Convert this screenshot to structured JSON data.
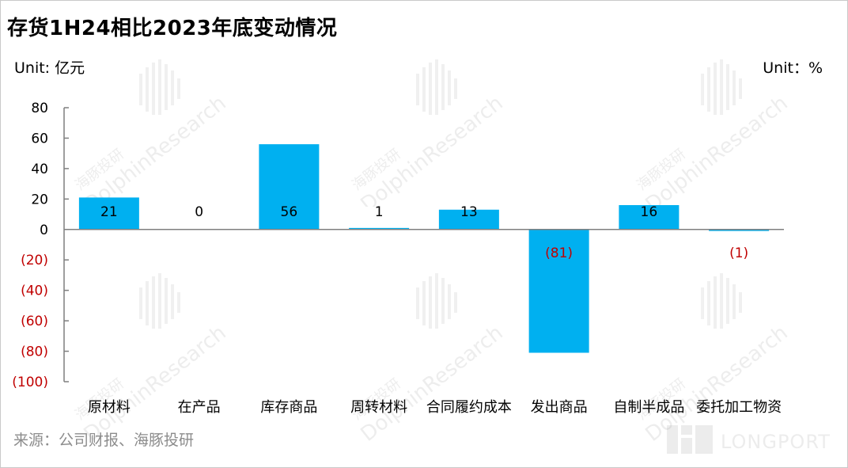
{
  "title": "存货1H24相比2023年底变动情况",
  "unit_left": "Unit: 亿元",
  "unit_right": "Unit：%",
  "source": "来源：公司财报、海豚投研",
  "watermark": {
    "cn": "海豚投研",
    "en": "DolphinResearch"
  },
  "logo_text": "LONGPORT",
  "colors": {
    "bar": "#00b0f0",
    "negative_text": "#c00000",
    "text": "#000000",
    "axis": "#7f7f7f"
  },
  "chart_data": {
    "type": "bar",
    "categories": [
      "原材料",
      "在产品",
      "库存商品",
      "周转材料",
      "合同履约成本",
      "发出商品",
      "自制半成品",
      "委托加工物资"
    ],
    "values": [
      21,
      0,
      56,
      1,
      13,
      -81,
      16,
      -1
    ],
    "data_labels": [
      "21",
      "0",
      "56",
      "1",
      "13",
      "(81)",
      "16",
      "(1)"
    ],
    "yticks": [
      80,
      60,
      40,
      20,
      0,
      -20,
      -40,
      -60,
      -80,
      -100
    ],
    "ytick_labels": [
      "80",
      "60",
      "40",
      "20",
      "0",
      "(20)",
      "(40)",
      "(60)",
      "(80)",
      "(100)"
    ],
    "ylim": [
      -100,
      80
    ],
    "grid": false,
    "legend": false
  }
}
